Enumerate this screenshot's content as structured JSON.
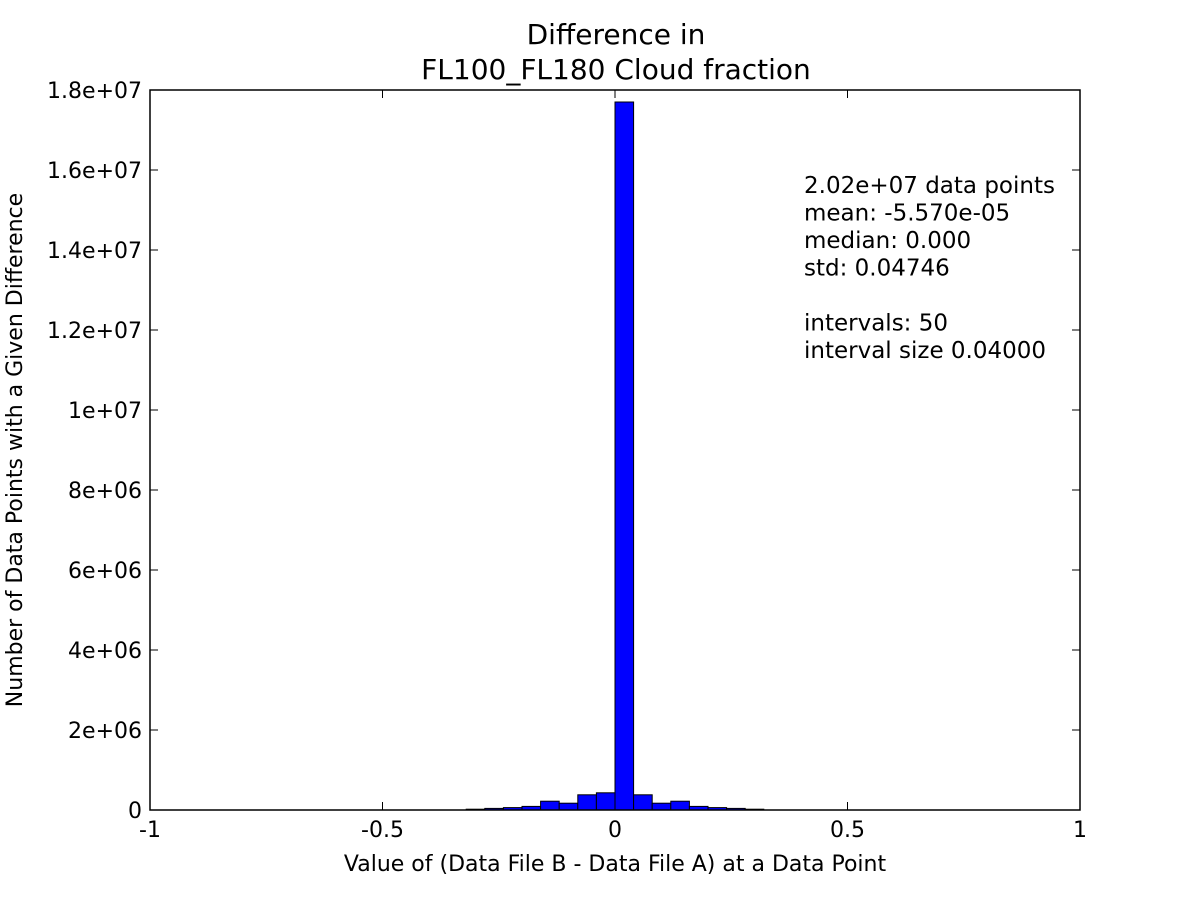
{
  "chart_data": {
    "type": "bar",
    "title_line1": "Difference in",
    "title_line2": "FL100_FL180 Cloud fraction",
    "xlabel": "Value of (Data File B - Data File A) at a Data Point",
    "ylabel": "Number of Data Points with a Given Difference",
    "xlim": [
      -1,
      1
    ],
    "ylim": [
      0,
      18000000
    ],
    "xticks": [
      -1,
      -0.5,
      0,
      0.5,
      1
    ],
    "xtick_labels": [
      "-1",
      "-0.5",
      "0",
      "0.5",
      "1"
    ],
    "yticks": [
      0,
      2000000,
      4000000,
      6000000,
      8000000,
      10000000,
      12000000,
      14000000,
      16000000,
      18000000
    ],
    "ytick_labels": [
      "0",
      "2e+06",
      "4e+06",
      "6e+06",
      "8e+06",
      "1e+07",
      "1.2e+07",
      "1.4e+07",
      "1.6e+07",
      "1.8e+07"
    ],
    "bar_color": "#0000ff",
    "grid": false,
    "bin_width": 0.04,
    "bins": [
      {
        "x0": -0.32,
        "value": 20000
      },
      {
        "x0": -0.28,
        "value": 40000
      },
      {
        "x0": -0.24,
        "value": 60000
      },
      {
        "x0": -0.2,
        "value": 90000
      },
      {
        "x0": -0.16,
        "value": 220000
      },
      {
        "x0": -0.12,
        "value": 170000
      },
      {
        "x0": -0.08,
        "value": 380000
      },
      {
        "x0": -0.04,
        "value": 430000
      },
      {
        "x0": 0.0,
        "value": 17700000
      },
      {
        "x0": 0.04,
        "value": 380000
      },
      {
        "x0": 0.08,
        "value": 170000
      },
      {
        "x0": 0.12,
        "value": 220000
      },
      {
        "x0": 0.16,
        "value": 90000
      },
      {
        "x0": 0.2,
        "value": 60000
      },
      {
        "x0": 0.24,
        "value": 40000
      },
      {
        "x0": 0.28,
        "value": 20000
      }
    ],
    "stats": [
      "2.02e+07 data points",
      "mean: -5.570e-05",
      "median: 0.000",
      "std: 0.04746",
      "",
      "intervals: 50",
      "interval size 0.04000"
    ]
  }
}
